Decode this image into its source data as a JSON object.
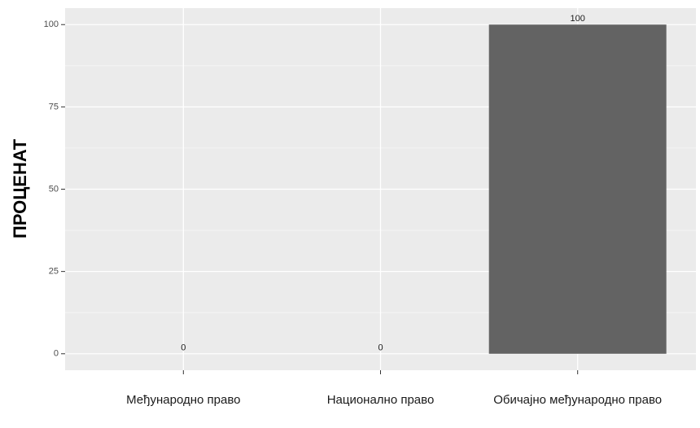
{
  "chart_data": {
    "type": "bar",
    "y_label": "ПРОЦЕНАТ",
    "categories": [
      "Међународно право",
      "Национално право",
      "Обичајно међународно право"
    ],
    "values": [
      0,
      0,
      100
    ],
    "color": "#636363",
    "ylim": [
      -5,
      105
    ],
    "yticks": [
      0,
      25,
      50,
      75,
      100
    ],
    "grid": true
  }
}
